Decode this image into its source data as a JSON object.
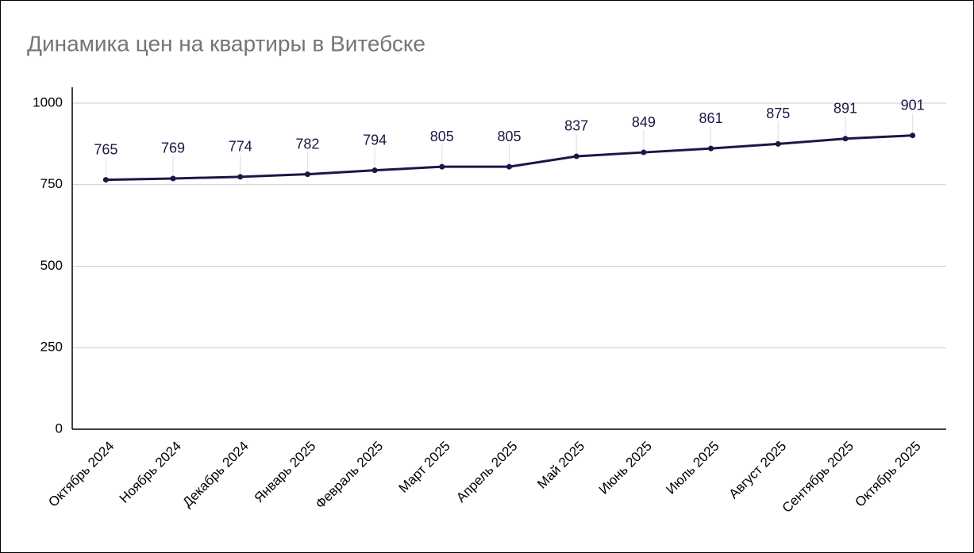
{
  "chart_data": {
    "type": "line",
    "title": "Динамика цен на квартиры в Витебске",
    "categories": [
      "Октябрь 2024",
      "Ноябрь 2024",
      "Декабрь 2024",
      "Январь 2025",
      "Февраль 2025",
      "Март 2025",
      "Апрель 2025",
      "Май 2025",
      "Июнь 2025",
      "Июль 2025",
      "Август 2025",
      "Сентябрь 2025",
      "Октябрь 2025"
    ],
    "values": [
      765,
      769,
      774,
      782,
      794,
      805,
      805,
      837,
      849,
      861,
      875,
      891,
      901
    ],
    "color": "#1e1646",
    "ylim": [
      0,
      1000
    ],
    "yticks": [
      0,
      250,
      500,
      750,
      1000
    ],
    "grid": true,
    "data_labels": true
  }
}
